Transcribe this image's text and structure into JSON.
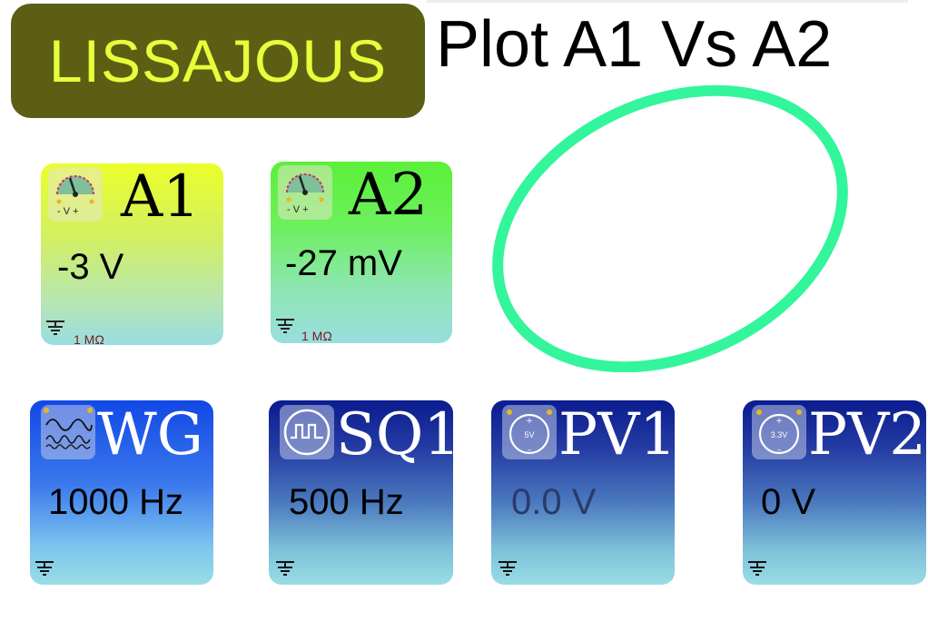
{
  "app": {
    "title": "LISSAJOUS",
    "plot_title": "Plot A1 Vs A2"
  },
  "colors": {
    "title_bg": "#5c5f13",
    "title_text": "#e6ff3a",
    "lissajous": "#33f59b"
  },
  "inputs": [
    {
      "id": "A1",
      "label": "A1",
      "value": "-3 V",
      "impedance": "1 MΩ",
      "icon": "voltmeter-icon",
      "icon_text": "- V +"
    },
    {
      "id": "A2",
      "label": "A2",
      "value": "-27 mV",
      "impedance": "1 MΩ",
      "icon": "voltmeter-icon",
      "icon_text": "- V +"
    }
  ],
  "outputs": [
    {
      "id": "WG",
      "label": "WG",
      "value": "1000 Hz",
      "icon": "sine-wave-icon"
    },
    {
      "id": "SQ1",
      "label": "SQ1",
      "value": "500 Hz",
      "icon": "square-wave-icon"
    },
    {
      "id": "PV1",
      "label": "PV1",
      "value": "0.0 V",
      "icon": "power-source-icon",
      "icon_text": "5V",
      "value_dim": true
    },
    {
      "id": "PV2",
      "label": "PV2",
      "value": "0 V",
      "icon": "power-source-icon",
      "icon_text": "3.3V"
    }
  ]
}
